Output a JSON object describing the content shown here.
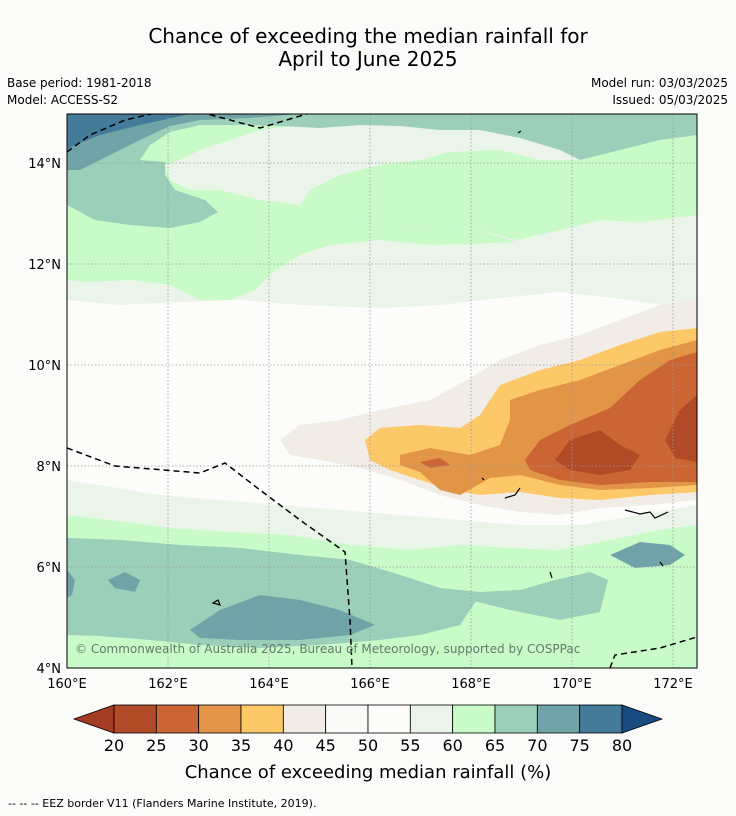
{
  "title_line1": "Chance of exceeding the median rainfall for",
  "title_line2": "April to June 2025",
  "base_period": "Base period: 1981-2018",
  "model": "Model: ACCESS-S2",
  "model_run": "Model run: 03/03/2025",
  "issued": "Issued: 05/03/2025",
  "copyright": "© Commonwealth of Australia 2025, Bureau of Meteorology, supported by COSPPac",
  "lat_labels": [
    "14°N",
    "12°N",
    "10°N",
    "8°N",
    "6°N",
    "4°N"
  ],
  "lon_labels": [
    "160°E",
    "162°E",
    "164°E",
    "166°E",
    "168°E",
    "170°E",
    "172°E"
  ],
  "colorbar": {
    "title": "Chance of exceeding median rainfall (%)",
    "ticks": [
      "20",
      "25",
      "30",
      "35",
      "40",
      "45",
      "50",
      "55",
      "60",
      "65",
      "70",
      "75",
      "80"
    ],
    "colors": [
      "#a43b23",
      "#b14a26",
      "#cb6534",
      "#e29447",
      "#fcc868",
      "#f1ece6",
      "#fafbf9",
      "#fcfdfb",
      "#eaf4e8",
      "#c9fbc9",
      "#9bcfb9",
      "#70a3a7",
      "#437b99",
      "#1a4c82"
    ]
  },
  "footer": "--  --  -- EEZ border V11 (Flanders Marine Institute, 2019)."
}
